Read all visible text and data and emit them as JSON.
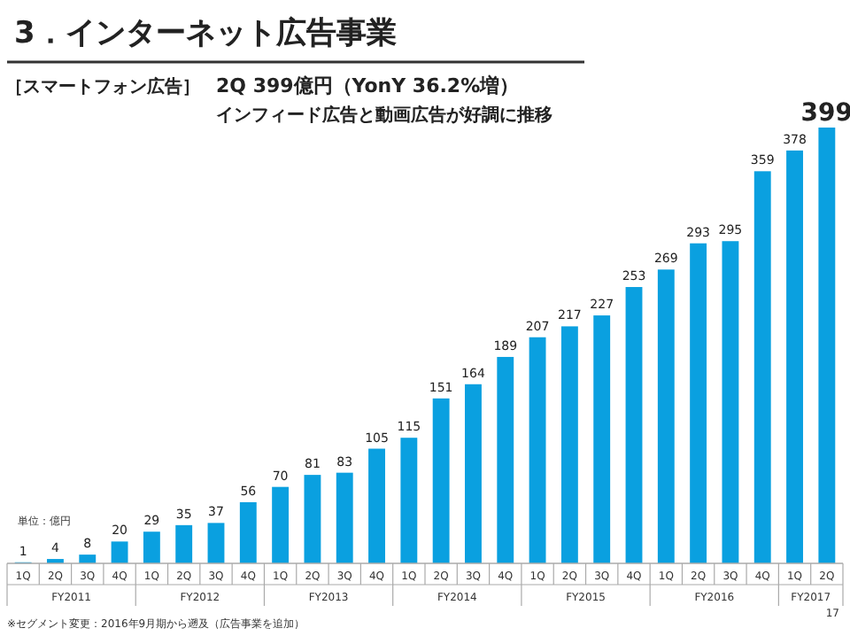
{
  "chart_data": {
    "type": "bar",
    "title": "3．インターネット広告事業",
    "subtitle": "［スマートフォン広告］",
    "categories": [
      "1Q",
      "2Q",
      "3Q",
      "4Q",
      "1Q",
      "2Q",
      "3Q",
      "4Q",
      "1Q",
      "2Q",
      "3Q",
      "4Q",
      "1Q",
      "2Q",
      "3Q",
      "4Q",
      "1Q",
      "2Q",
      "3Q",
      "4Q",
      "1Q",
      "2Q",
      "3Q",
      "4Q",
      "1Q",
      "2Q"
    ],
    "values": [
      1,
      4,
      8,
      20,
      29,
      35,
      37,
      56,
      70,
      81,
      83,
      105,
      115,
      151,
      164,
      189,
      207,
      217,
      227,
      253,
      269,
      293,
      295,
      359,
      378,
      399
    ],
    "color": "#0aa0e0",
    "data_labels": true,
    "annotations": [
      "2Q 399億円（YonY 36.2%増）",
      "インフィード広告と動画広告が好調に推移",
      "単位：億円",
      "FY2011",
      "FY2012",
      "FY2013",
      "FY2014",
      "FY2015",
      "FY2016",
      "FY2017",
      "※セグメント変更：2016年9月期から遡及（広告事業を追加）",
      "17"
    ]
  }
}
